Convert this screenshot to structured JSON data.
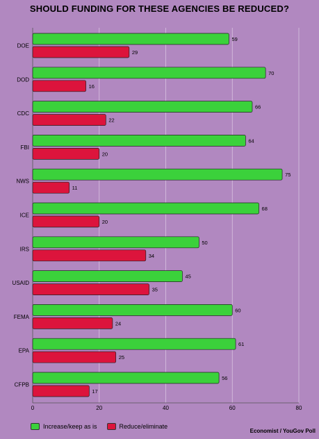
{
  "chart_data": {
    "type": "bar",
    "orientation": "horizontal",
    "title": "SHOULD FUNDING FOR THESE AGENCIES BE REDUCED?",
    "categories": [
      "DOE",
      "DOD",
      "CDC",
      "FBI",
      "NWS",
      "ICE",
      "IRS",
      "USAID",
      "FEMA",
      "EPA",
      "CFPB"
    ],
    "series": [
      {
        "name": "Increase/keep as is",
        "color": "#3bd13b",
        "values": [
          59,
          70,
          66,
          64,
          75,
          68,
          50,
          45,
          60,
          61,
          56
        ]
      },
      {
        "name": "Reduce/eliminate",
        "color": "#dc143c",
        "values": [
          29,
          16,
          22,
          20,
          11,
          20,
          34,
          35,
          24,
          25,
          17
        ]
      }
    ],
    "xlim": [
      0,
      80
    ],
    "xticks": [
      0,
      20,
      40,
      60,
      80
    ],
    "grid": true,
    "legend": "bottom-left",
    "source": "Economist / YouGov Poll"
  }
}
